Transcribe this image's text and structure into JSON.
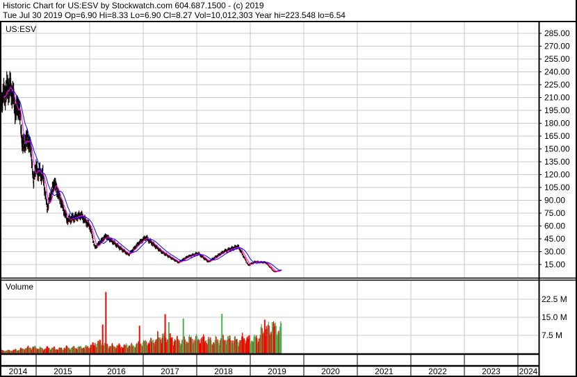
{
  "header": {
    "title": "Historic Chart for US:ESV by Stockwatch.com 604.687.1500 - (c) 2019",
    "quote_line": "Tue Jul 30 2019   Op=6.90   Hi=8.33   Lo=6.90   Cl=8.27   Vol=10,012,303   Year hi=223.548   lo=6.54"
  },
  "chart_data": [
    {
      "type": "line",
      "label": "US:ESV",
      "ylim": [
        0,
        300
      ],
      "y_ticks": [
        "285.00",
        "270.00",
        "255.00",
        "240.00",
        "225.00",
        "210.00",
        "195.00",
        "180.00",
        "165.00",
        "150.00",
        "135.00",
        "120.00",
        "105.00",
        "90.00",
        "75.00",
        "60.00",
        "45.00",
        "30.00",
        "15.00"
      ],
      "x_ticks": [
        "2014",
        "2015",
        "2016",
        "2017",
        "2018",
        "2019",
        "2020",
        "2021",
        "2022",
        "2023",
        "2024"
      ],
      "grid": true,
      "colors": {
        "price": "#000000",
        "down_close": "#ff0000",
        "short_ma": "#ff00ff",
        "long_ma": "#0000ff",
        "grid": "#c8c8c8"
      },
      "price_points": [
        [
          "2014-04-28",
          204.7
        ],
        [
          "2014-06-28",
          222.6
        ],
        [
          "2014-07-24",
          216
        ],
        [
          "2014-08-12",
          194
        ],
        [
          "2014-09-06",
          200
        ],
        [
          "2014-10-01",
          153.6
        ],
        [
          "2014-11-03",
          161.8
        ],
        [
          "2014-11-28",
          148
        ],
        [
          "2014-12-14",
          107
        ],
        [
          "2014-12-22",
          127
        ],
        [
          "2015-02-16",
          119
        ],
        [
          "2015-03-17",
          80.7
        ],
        [
          "2015-05-05",
          110.7
        ],
        [
          "2015-07-31",
          66.9
        ],
        [
          "2015-11-03",
          72.6
        ],
        [
          "2016-01-04",
          58.8
        ],
        [
          "2016-02-06",
          34.5
        ],
        [
          "2016-04-21",
          48.2
        ],
        [
          "2016-07-26",
          34.5
        ],
        [
          "2016-09-23",
          26.4
        ],
        [
          "2016-12-02",
          40
        ],
        [
          "2017-01-19",
          46.6
        ],
        [
          "2017-05-08",
          29.6
        ],
        [
          "2017-08-30",
          17.4
        ],
        [
          "2017-10-30",
          23.9
        ],
        [
          "2018-01-10",
          28
        ],
        [
          "2018-03-22",
          18.2
        ],
        [
          "2018-07-08",
          30.4
        ],
        [
          "2018-10-11",
          36.1
        ],
        [
          "2018-12-18",
          14.2
        ],
        [
          "2019-02-02",
          18.2
        ],
        [
          "2019-04-17",
          17.4
        ],
        [
          "2019-06-12",
          6.5
        ],
        [
          "2019-07-30",
          8.27
        ]
      ]
    },
    {
      "type": "bar",
      "label": "Volume",
      "ylim": [
        0,
        30000000
      ],
      "y_ticks": [
        "22.5 M",
        "15.0 M",
        "7.5 M"
      ],
      "colors": {
        "up": "#4caf50",
        "down": "#ff0000"
      },
      "monthly_start": "2014-05",
      "monthly_typical_volume_millions": [
        1.2,
        1.2,
        1.3,
        1.5,
        1.8,
        2.2,
        2.5,
        2.5,
        2.2,
        2.0,
        2.3,
        2.2,
        2.0,
        2.0,
        2.5,
        2.3,
        2.4,
        2.5,
        2.6,
        2.8,
        3.5,
        4.5,
        4.5,
        3.5,
        3.2,
        3.0,
        3.2,
        3.0,
        3.5,
        3.2,
        3.8,
        4.5,
        4.5,
        5.0,
        5.5,
        7.0,
        7.0,
        6.5,
        6.0,
        5.5,
        5.0,
        5.5,
        6.0,
        6.0,
        6.0,
        6.0,
        5.5,
        5.0,
        5.5,
        6.0,
        6.0,
        6.0,
        5.5,
        5.5,
        6.5,
        6.0,
        6.0,
        6.5,
        9.0,
        10.0,
        10.0,
        10.5,
        10.0
      ],
      "spikes_millions": [
        [
          "2016-03-25",
          12.0,
          "down"
        ],
        [
          "2016-04-16",
          25.5,
          "down"
        ],
        [
          "2016-12-02",
          11.5,
          "down"
        ],
        [
          "2017-05-26",
          16.3,
          "down"
        ],
        [
          "2017-06-20",
          13.0,
          "up"
        ],
        [
          "2017-09-27",
          14.5,
          "up"
        ],
        [
          "2018-06-17",
          16.5,
          "up"
        ],
        [
          "2019-04-05",
          14.0,
          "down"
        ],
        [
          "2019-05-27",
          13.0,
          "up"
        ]
      ]
    }
  ]
}
